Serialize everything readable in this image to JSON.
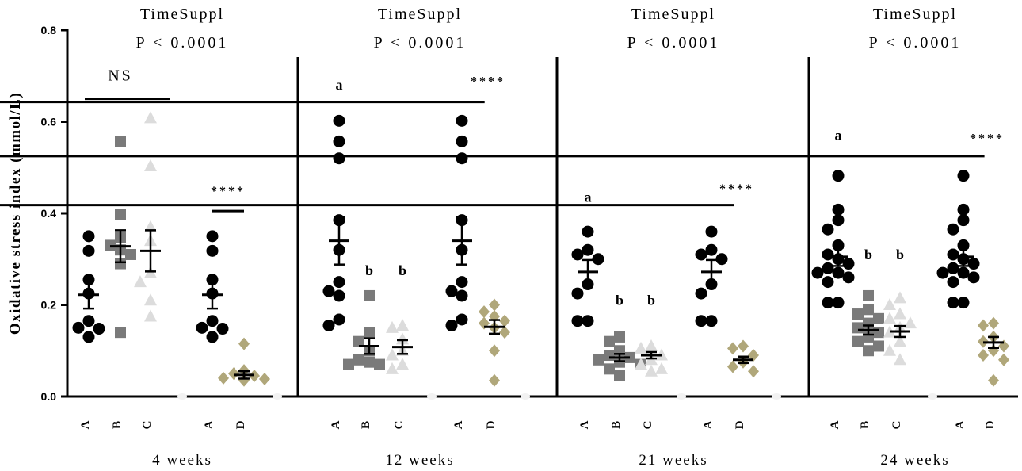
{
  "chart_data": {
    "type": "scatter",
    "ylabel": "Oxidative stress index (mmol/L)",
    "ylim": [
      0,
      0.8
    ],
    "yticks": [
      "0.0",
      "0.2",
      "0.4",
      "0.6",
      "0.8"
    ],
    "colors": {
      "A": "#000000",
      "B": "#7a7a7a",
      "C": "#dcdcdc",
      "D": "#b0a77a"
    },
    "panels": [
      {
        "title": "TimeSuppl",
        "pvalue": "P < 0.0001",
        "xlabel": "4 weeks",
        "groups": [
          {
            "label": "A",
            "marker": "circle",
            "color": "#000000",
            "mean": 0.222,
            "sem": 0.03,
            "values": [
              0.35,
              0.318,
              0.255,
              0.225,
              0.165,
              0.15,
              0.148,
              0.13
            ]
          },
          {
            "label": "B",
            "marker": "square",
            "color": "#7a7a7a",
            "mean": 0.328,
            "sem": 0.035,
            "values": [
              0.557,
              0.397,
              0.347,
              0.33,
              0.32,
              0.31,
              0.29,
              0.14
            ]
          },
          {
            "label": "C",
            "marker": "triangle",
            "color": "#dcdcdc",
            "mean": 0.318,
            "sem": 0.045,
            "values": [
              0.608,
              0.503,
              0.37,
              0.34,
              0.27,
              0.25,
              0.21,
              0.175
            ]
          },
          {
            "label": "A",
            "marker": "circle",
            "color": "#000000",
            "mean": 0.222,
            "sem": 0.03,
            "values": [
              0.35,
              0.318,
              0.255,
              0.225,
              0.165,
              0.15,
              0.148,
              0.13
            ]
          },
          {
            "label": "D",
            "marker": "diamond",
            "color": "#b0a77a",
            "mean": 0.047,
            "sem": 0.008,
            "values": [
              0.115,
              0.057,
              0.05,
              0.045,
              0.04,
              0.038,
              0.035
            ]
          }
        ],
        "annotations": [
          {
            "text": "NS",
            "x": 1,
            "y": 0.69
          },
          {
            "text": "****",
            "x": 3.5,
            "y": 0.44
          }
        ],
        "brackets": [
          {
            "from": 0,
            "to": 2,
            "y": 0.65
          },
          {
            "from": 3,
            "to": 4,
            "y": 0.405
          }
        ]
      },
      {
        "title": "TimeSuppl",
        "pvalue": "P < 0.0001",
        "xlabel": "12 weeks",
        "groups": [
          {
            "label": "A",
            "marker": "circle",
            "color": "#000000",
            "mean": 0.34,
            "sem": 0.052,
            "values": [
              0.602,
              0.557,
              0.52,
              0.385,
              0.32,
              0.25,
              0.23,
              0.22,
              0.168,
              0.155
            ]
          },
          {
            "label": "B",
            "marker": "square",
            "color": "#7a7a7a",
            "mean": 0.11,
            "sem": 0.017,
            "values": [
              0.22,
              0.14,
              0.12,
              0.1,
              0.08,
              0.075,
              0.07,
              0.07
            ]
          },
          {
            "label": "C",
            "marker": "triangle",
            "color": "#dcdcdc",
            "mean": 0.108,
            "sem": 0.015,
            "values": [
              0.155,
              0.15,
              0.125,
              0.1,
              0.09,
              0.07,
              0.06
            ]
          },
          {
            "label": "A",
            "marker": "circle",
            "color": "#000000",
            "mean": 0.34,
            "sem": 0.052,
            "values": [
              0.602,
              0.557,
              0.52,
              0.385,
              0.32,
              0.25,
              0.23,
              0.22,
              0.168,
              0.155
            ]
          },
          {
            "label": "D",
            "marker": "diamond",
            "color": "#b0a77a",
            "mean": 0.152,
            "sem": 0.015,
            "values": [
              0.2,
              0.185,
              0.175,
              0.165,
              0.16,
              0.15,
              0.14,
              0.1,
              0.035
            ]
          }
        ],
        "annotations": [
          {
            "text": "a",
            "x": 0,
            "y": 0.67
          },
          {
            "text": "b",
            "x": 1,
            "y": 0.265
          },
          {
            "text": "b",
            "x": 2,
            "y": 0.265
          },
          {
            "text": "****",
            "x": 4,
            "y": 0.68
          }
        ],
        "brackets": [
          {
            "from": 3.7,
            "to": 4.7,
            "y": 0.643
          }
        ]
      },
      {
        "title": "TimeSuppl",
        "pvalue": "P < 0.0001",
        "xlabel": "21 weeks",
        "groups": [
          {
            "label": "A",
            "marker": "circle",
            "color": "#000000",
            "mean": 0.272,
            "sem": 0.026,
            "values": [
              0.36,
              0.32,
              0.31,
              0.3,
              0.245,
              0.225,
              0.165,
              0.165
            ]
          },
          {
            "label": "B",
            "marker": "square",
            "color": "#7a7a7a",
            "mean": 0.085,
            "sem": 0.008,
            "values": [
              0.13,
              0.12,
              0.1,
              0.09,
              0.085,
              0.08,
              0.075,
              0.07,
              0.06,
              0.045
            ]
          },
          {
            "label": "C",
            "marker": "triangle",
            "color": "#dcdcdc",
            "mean": 0.09,
            "sem": 0.007,
            "values": [
              0.11,
              0.105,
              0.09,
              0.08,
              0.07,
              0.06,
              0.055
            ]
          },
          {
            "label": "A",
            "marker": "circle",
            "color": "#000000",
            "mean": 0.272,
            "sem": 0.026,
            "values": [
              0.36,
              0.32,
              0.31,
              0.3,
              0.245,
              0.225,
              0.165,
              0.165
            ]
          },
          {
            "label": "D",
            "marker": "diamond",
            "color": "#b0a77a",
            "mean": 0.08,
            "sem": 0.007,
            "values": [
              0.11,
              0.105,
              0.09,
              0.075,
              0.065,
              0.055
            ]
          }
        ],
        "annotations": [
          {
            "text": "a",
            "x": 0,
            "y": 0.425
          },
          {
            "text": "b",
            "x": 1,
            "y": 0.2
          },
          {
            "text": "b",
            "x": 2,
            "y": 0.2
          },
          {
            "text": "****",
            "x": 4,
            "y": 0.445
          }
        ],
        "brackets": [
          {
            "from": 3.7,
            "to": 4.7,
            "y": 0.418
          }
        ]
      },
      {
        "title": "TimeSuppl",
        "pvalue": "P < 0.0001",
        "xlabel": "24 weeks",
        "groups": [
          {
            "label": "A",
            "marker": "circle",
            "color": "#000000",
            "mean": 0.305,
            "sem": 0.02,
            "values": [
              0.482,
              0.408,
              0.385,
              0.365,
              0.33,
              0.31,
              0.3,
              0.29,
              0.28,
              0.27,
              0.27,
              0.26,
              0.25,
              0.205,
              0.205
            ]
          },
          {
            "label": "B",
            "marker": "square",
            "color": "#7a7a7a",
            "mean": 0.145,
            "sem": 0.01,
            "values": [
              0.22,
              0.19,
              0.18,
              0.17,
              0.16,
              0.15,
              0.14,
              0.13,
              0.12,
              0.11,
              0.1
            ]
          },
          {
            "label": "C",
            "marker": "triangle",
            "color": "#dcdcdc",
            "mean": 0.142,
            "sem": 0.012,
            "values": [
              0.215,
              0.2,
              0.18,
              0.17,
              0.16,
              0.15,
              0.14,
              0.12,
              0.1,
              0.08
            ]
          },
          {
            "label": "A",
            "marker": "circle",
            "color": "#000000",
            "mean": 0.305,
            "sem": 0.02,
            "values": [
              0.482,
              0.408,
              0.385,
              0.365,
              0.33,
              0.31,
              0.3,
              0.29,
              0.28,
              0.27,
              0.27,
              0.26,
              0.25,
              0.205,
              0.205
            ]
          },
          {
            "label": "D",
            "marker": "diamond",
            "color": "#b0a77a",
            "mean": 0.118,
            "sem": 0.012,
            "values": [
              0.16,
              0.155,
              0.13,
              0.12,
              0.11,
              0.1,
              0.09,
              0.08,
              0.035
            ]
          }
        ],
        "annotations": [
          {
            "text": "a",
            "x": 0,
            "y": 0.56
          },
          {
            "text": "b",
            "x": 1,
            "y": 0.3
          },
          {
            "text": "b",
            "x": 2,
            "y": 0.3
          },
          {
            "text": "****",
            "x": 4,
            "y": 0.555
          }
        ],
        "brackets": [
          {
            "from": 3.7,
            "to": 4.7,
            "y": 0.525
          }
        ]
      }
    ]
  }
}
